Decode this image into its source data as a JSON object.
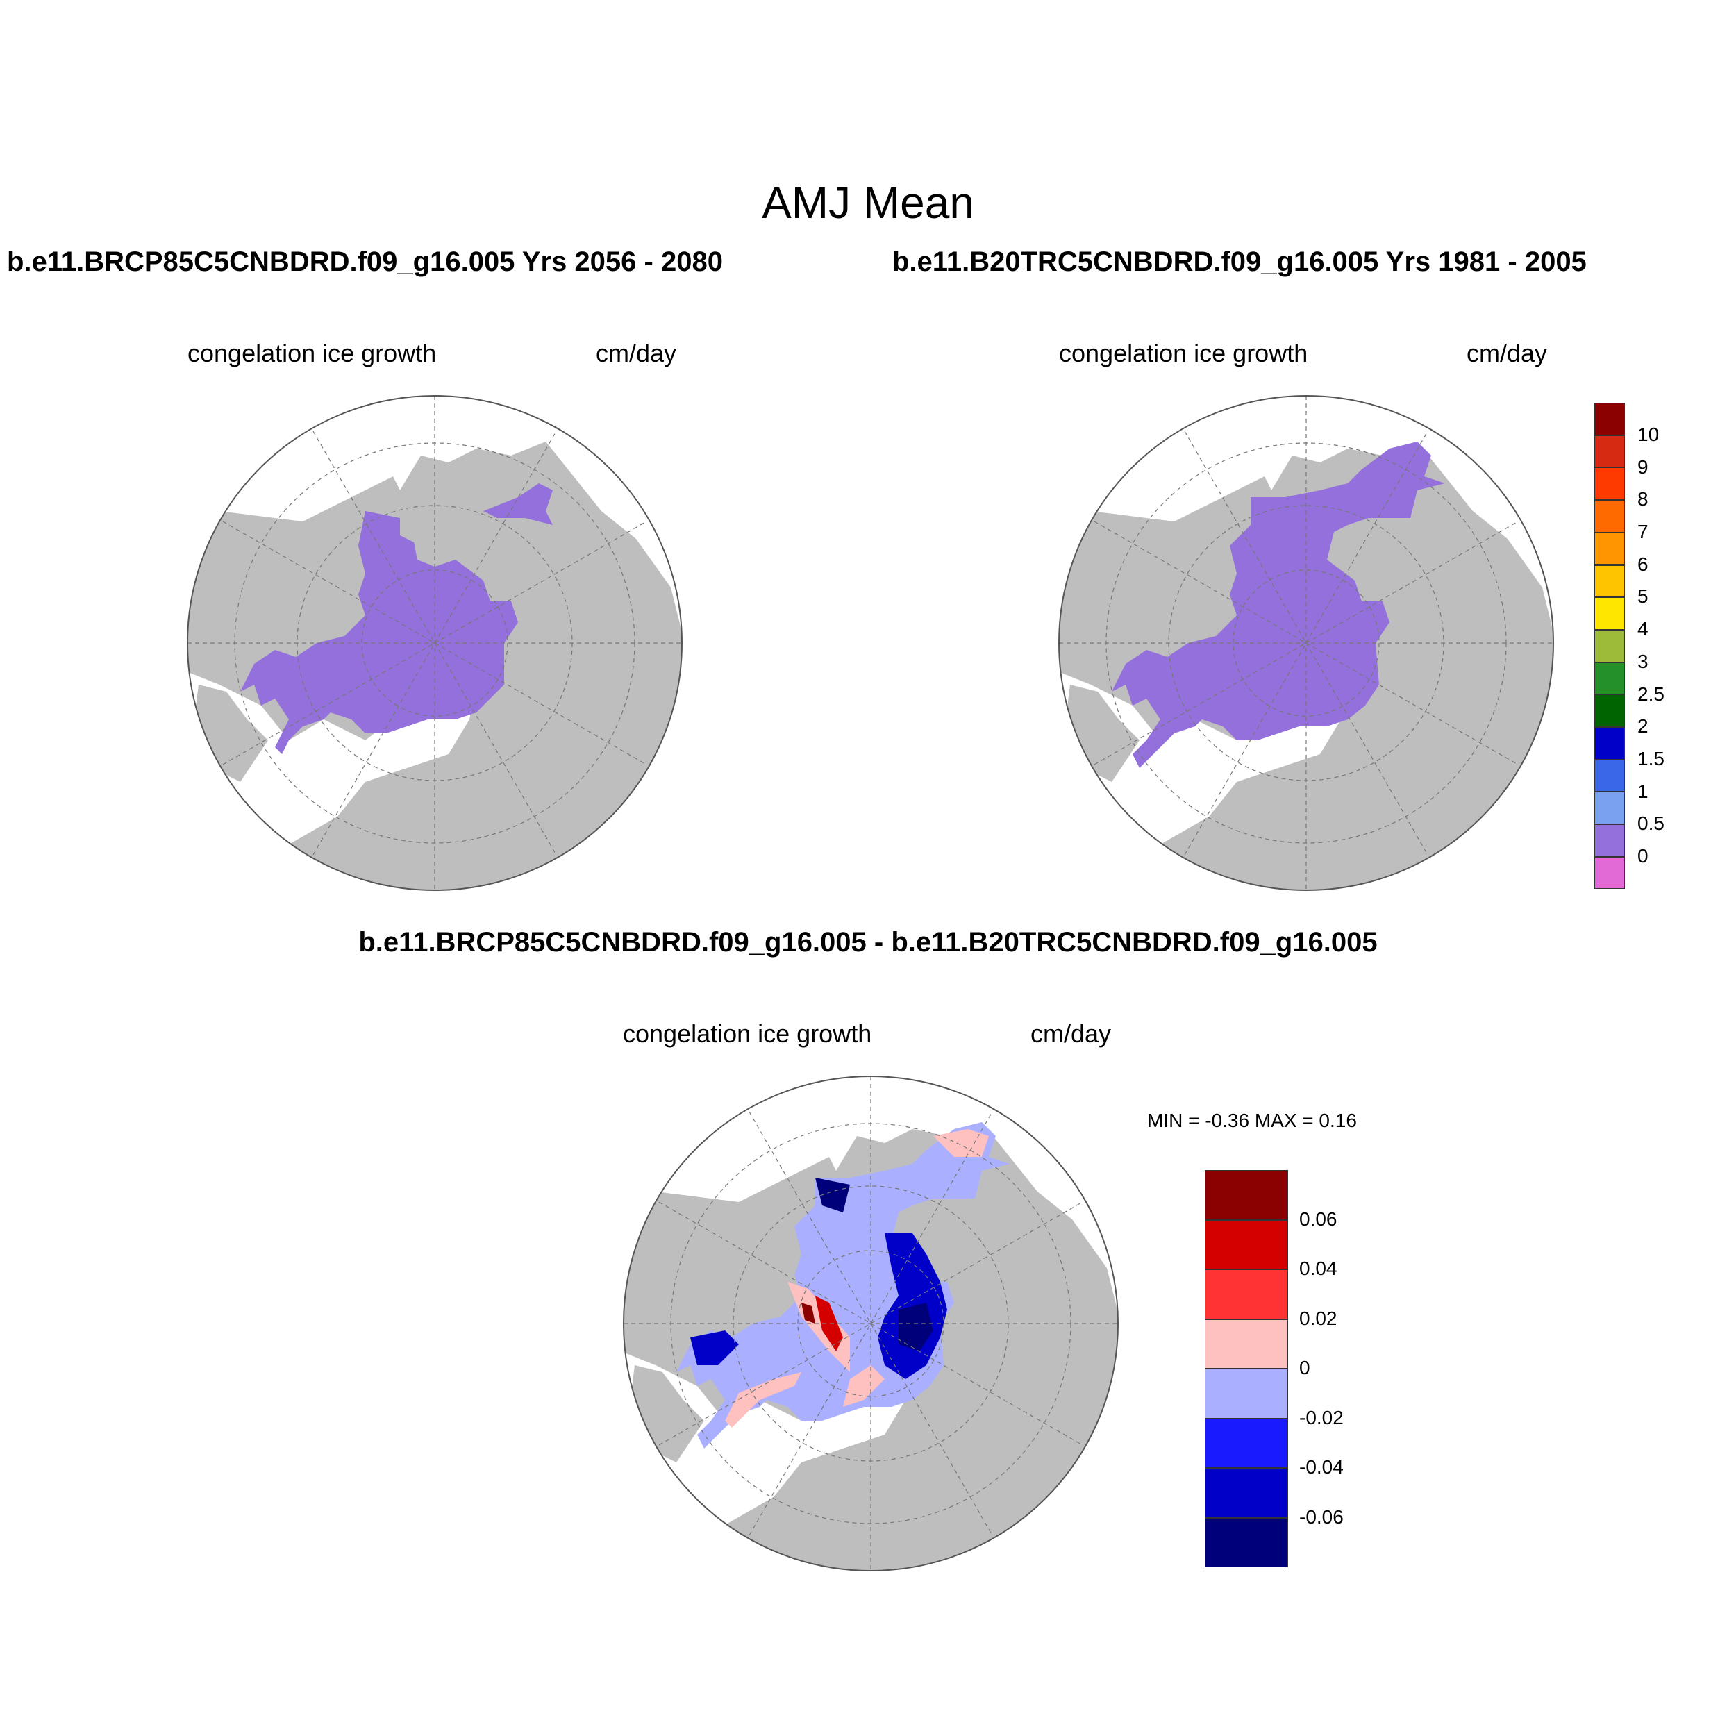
{
  "title": "AMJ Mean",
  "panels": {
    "left": {
      "title": "b.e11.BRCP85C5CNBDRD.f09_g16.005  Yrs 2056 - 2080",
      "variable": "congelation ice growth",
      "units": "cm/day"
    },
    "right": {
      "title": "b.e11.B20TRC5CNBDRD.f09_g16.005  Yrs 1981 - 2005",
      "variable": "congelation ice growth",
      "units": "cm/day"
    },
    "diff": {
      "title": "b.e11.BRCP85C5CNBDRD.f09_g16.005 - b.e11.B20TRC5CNBDRD.f09_g16.005",
      "variable": "congelation ice growth",
      "units": "cm/day",
      "minmax": "MIN =  -0.36 MAX =   0.16"
    }
  },
  "colorbar_main": {
    "labels": [
      "10",
      "9",
      "8",
      "7",
      "6",
      "5",
      "4",
      "3",
      "2.5",
      "2",
      "1.5",
      "1",
      "0.5",
      "0"
    ],
    "colors": [
      "#8b0000",
      "#d62b12",
      "#ff3a00",
      "#ff6a00",
      "#ff9500",
      "#ffc400",
      "#ffe600",
      "#9dbb38",
      "#23902a",
      "#006400",
      "#0000c8",
      "#3a66e8",
      "#7aa0f0",
      "#9370db",
      "#e26ad6"
    ]
  },
  "colorbar_diff": {
    "labels": [
      "0.06",
      "0.04",
      "0.02",
      "0",
      "-0.02",
      "-0.04",
      "-0.06"
    ],
    "colors": [
      "#8b0000",
      "#d40000",
      "#ff3333",
      "#ffc0c0",
      "#aab0ff",
      "#1a1aff",
      "#0000c8",
      "#00007a"
    ]
  },
  "map_colors": {
    "land": "#bebebe",
    "ocean": "#ffffff",
    "ice_mean": "#9370db"
  }
}
